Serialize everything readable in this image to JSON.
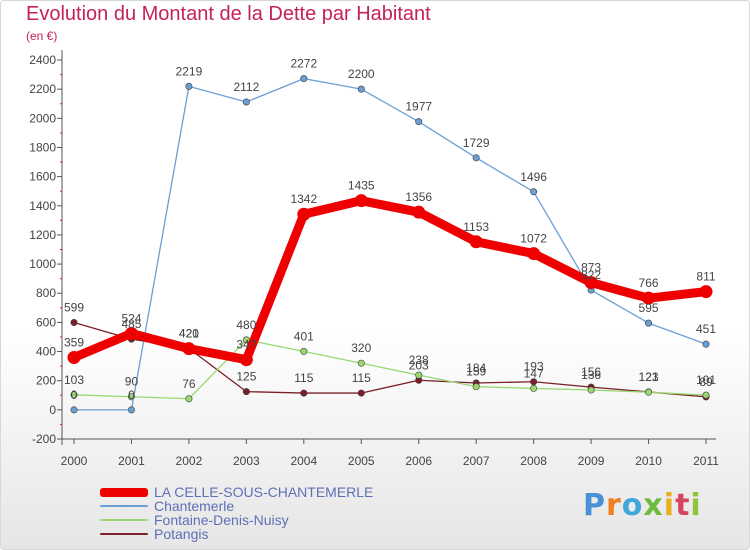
{
  "chart_data": {
    "type": "line",
    "title": "Evolution du Montant de la Dette par Habitant",
    "subtitle": "(en €)",
    "x": [
      "2000",
      "2001",
      "2002",
      "2003",
      "2004",
      "2005",
      "2006",
      "2007",
      "2008",
      "2009",
      "2010",
      "2011"
    ],
    "ylim": [
      -200,
      2400
    ],
    "yticks": [
      -200,
      0,
      200,
      400,
      600,
      800,
      1000,
      1200,
      1400,
      1600,
      1800,
      2000,
      2200,
      2400
    ],
    "grid": false,
    "legend_position": "bottom-left",
    "series": [
      {
        "name": "LA CELLE-SOUS-CHANTEMERLE",
        "color": "#ee0000",
        "values": [
          359,
          524,
          420,
          344,
          1342,
          1435,
          1356,
          1153,
          1072,
          873,
          766,
          811
        ],
        "labels": [
          "359",
          "524",
          "420",
          "34?",
          "1342",
          "1435",
          "1356",
          "1153",
          "1072",
          "873",
          "766",
          "811"
        ]
      },
      {
        "name": "Chantemerle",
        "color": "#6a9fd4",
        "values": [
          0,
          0,
          2219,
          2112,
          2272,
          2200,
          1977,
          1729,
          1496,
          822,
          595,
          451
        ],
        "labels": [
          "0",
          "0",
          "2219",
          "2112",
          "2272",
          "2200",
          "1977",
          "1729",
          "1496",
          "822",
          "595",
          "451"
        ]
      },
      {
        "name": "Fontaine-Denis-Nuisy",
        "color": "#9ad86f",
        "values": [
          103,
          90,
          76,
          480,
          401,
          320,
          238,
          159,
          147,
          136,
          121,
          101
        ],
        "labels": [
          "103",
          "90",
          "76",
          "480",
          "401",
          "320",
          "238",
          "159",
          "147",
          "136",
          "121",
          "101"
        ]
      },
      {
        "name": "Potangis",
        "color": "#7a2028",
        "values": [
          599,
          485,
          421,
          125,
          115,
          115,
          203,
          184,
          193,
          156,
          123,
          89
        ],
        "labels": [
          "599",
          "485",
          "421",
          "125",
          "115",
          "115",
          "203",
          "184",
          "193",
          "156",
          "123",
          "89"
        ]
      }
    ]
  },
  "logo": {
    "letters": [
      "P",
      "r",
      "o",
      "x",
      "i",
      "t",
      "i"
    ]
  }
}
